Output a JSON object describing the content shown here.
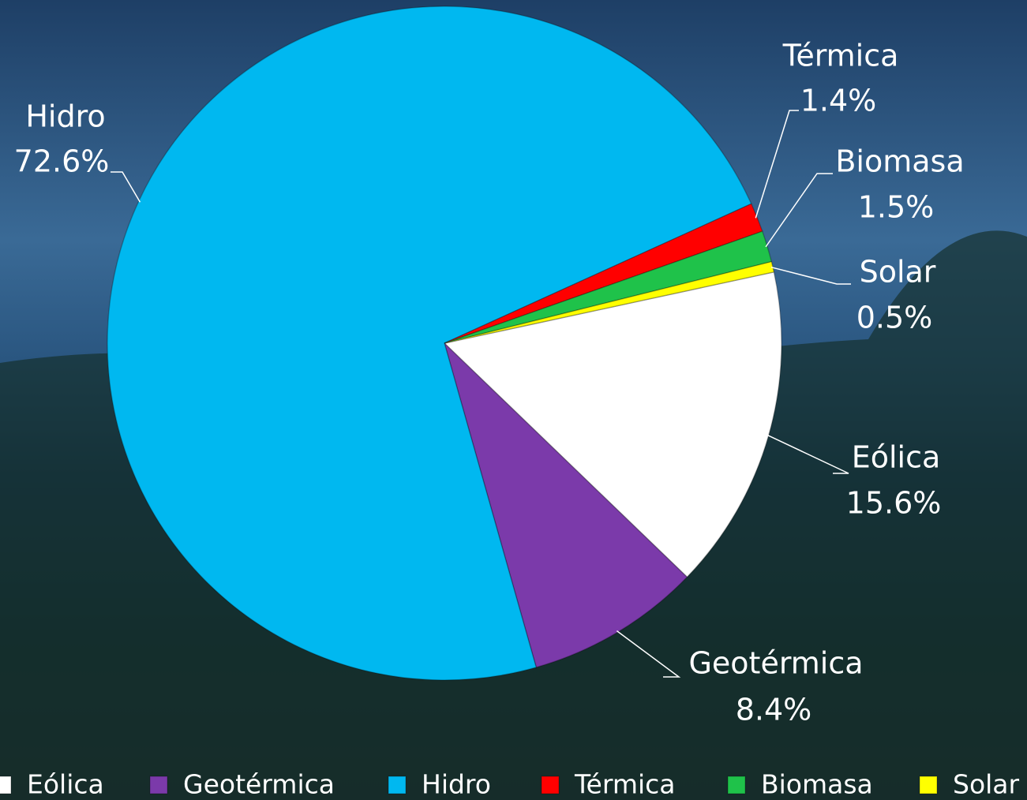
{
  "chart_data": {
    "type": "pie",
    "categories": [
      "Eólica",
      "Geotérmica",
      "Hidro",
      "Térmica",
      "Biomasa",
      "Solar"
    ],
    "values": [
      15.6,
      8.4,
      72.6,
      1.4,
      1.5,
      0.5
    ],
    "value_labels": [
      "15.6%",
      "8.4%",
      "72.6%",
      "1.4%",
      "1.5%",
      "0.5%"
    ],
    "colors": [
      "#ffffff",
      "#7b3aaa",
      "#00b8f0",
      "#ff0000",
      "#1fc24a",
      "#ffff00"
    ],
    "legend": "bottom"
  }
}
